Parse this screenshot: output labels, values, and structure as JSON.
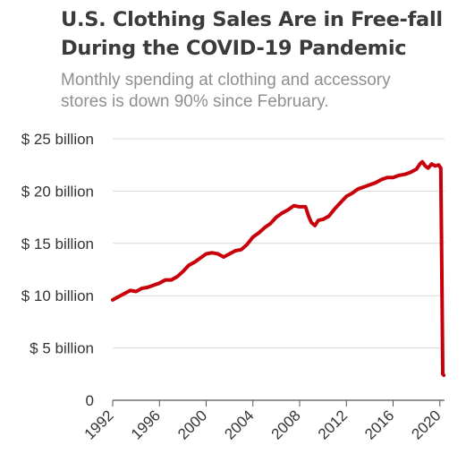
{
  "header": {
    "title_line1": "U.S. Clothing Sales Are in Free-fall",
    "title_line2": "During the COVID-19 Pandemic",
    "subtitle_line1": "Monthly spending at clothing and accessory",
    "subtitle_line2": "stores is down 90% since February."
  },
  "chart_data": {
    "type": "line",
    "title": "U.S. Clothing Sales Are in Free-fall During the COVID-19 Pandemic",
    "subtitle": "Monthly spending at clothing and accessory stores is down 90% since February.",
    "xlabel": "",
    "ylabel": "",
    "xlim": [
      1992,
      2020.33
    ],
    "ylim": [
      0,
      25
    ],
    "grid": true,
    "line_color": "#c8000a",
    "y_ticks": [
      {
        "value": 0,
        "label": "0"
      },
      {
        "value": 5,
        "label": "$ 5 billion"
      },
      {
        "value": 10,
        "label": "$ 10 billion"
      },
      {
        "value": 15,
        "label": "$ 15 billion"
      },
      {
        "value": 20,
        "label": "$ 20 billion"
      },
      {
        "value": 25,
        "label": "$ 25 billion"
      }
    ],
    "x_ticks": [
      {
        "value": 1992,
        "label": "1992"
      },
      {
        "value": 1996,
        "label": "1996"
      },
      {
        "value": 2000,
        "label": "2000"
      },
      {
        "value": 2004,
        "label": "2004"
      },
      {
        "value": 2008,
        "label": "2008"
      },
      {
        "value": 2012,
        "label": "2012"
      },
      {
        "value": 2016,
        "label": "2016"
      },
      {
        "value": 2020,
        "label": "2020"
      }
    ],
    "series": [
      {
        "values": [
          [
            1992.0,
            9.6
          ],
          [
            1992.5,
            9.9
          ],
          [
            1993.0,
            10.2
          ],
          [
            1993.5,
            10.5
          ],
          [
            1994.0,
            10.4
          ],
          [
            1994.5,
            10.7
          ],
          [
            1995.0,
            10.8
          ],
          [
            1995.5,
            11.0
          ],
          [
            1996.0,
            11.2
          ],
          [
            1996.5,
            11.5
          ],
          [
            1997.0,
            11.5
          ],
          [
            1997.5,
            11.8
          ],
          [
            1998.0,
            12.3
          ],
          [
            1998.5,
            12.9
          ],
          [
            1999.0,
            13.2
          ],
          [
            1999.5,
            13.6
          ],
          [
            2000.0,
            14.0
          ],
          [
            2000.5,
            14.1
          ],
          [
            2001.0,
            14.0
          ],
          [
            2001.5,
            13.7
          ],
          [
            2002.0,
            14.0
          ],
          [
            2002.5,
            14.3
          ],
          [
            2003.0,
            14.4
          ],
          [
            2003.5,
            14.9
          ],
          [
            2004.0,
            15.6
          ],
          [
            2004.5,
            16.0
          ],
          [
            2005.0,
            16.5
          ],
          [
            2005.5,
            16.9
          ],
          [
            2006.0,
            17.5
          ],
          [
            2006.5,
            17.9
          ],
          [
            2007.0,
            18.2
          ],
          [
            2007.5,
            18.6
          ],
          [
            2008.0,
            18.5
          ],
          [
            2008.5,
            18.5
          ],
          [
            2008.8,
            17.5
          ],
          [
            2009.0,
            17.0
          ],
          [
            2009.3,
            16.7
          ],
          [
            2009.6,
            17.2
          ],
          [
            2010.0,
            17.3
          ],
          [
            2010.5,
            17.6
          ],
          [
            2011.0,
            18.3
          ],
          [
            2011.5,
            18.9
          ],
          [
            2012.0,
            19.5
          ],
          [
            2012.5,
            19.8
          ],
          [
            2013.0,
            20.2
          ],
          [
            2013.5,
            20.4
          ],
          [
            2014.0,
            20.6
          ],
          [
            2014.5,
            20.8
          ],
          [
            2015.0,
            21.1
          ],
          [
            2015.5,
            21.3
          ],
          [
            2016.0,
            21.3
          ],
          [
            2016.5,
            21.5
          ],
          [
            2017.0,
            21.6
          ],
          [
            2017.5,
            21.8
          ],
          [
            2018.0,
            22.1
          ],
          [
            2018.3,
            22.6
          ],
          [
            2018.5,
            22.8
          ],
          [
            2018.75,
            22.4
          ],
          [
            2019.0,
            22.2
          ],
          [
            2019.3,
            22.6
          ],
          [
            2019.6,
            22.4
          ],
          [
            2019.9,
            22.5
          ],
          [
            2020.08,
            22.2
          ],
          [
            2020.17,
            12.0
          ],
          [
            2020.25,
            2.5
          ],
          [
            2020.33,
            2.4
          ]
        ]
      }
    ]
  }
}
